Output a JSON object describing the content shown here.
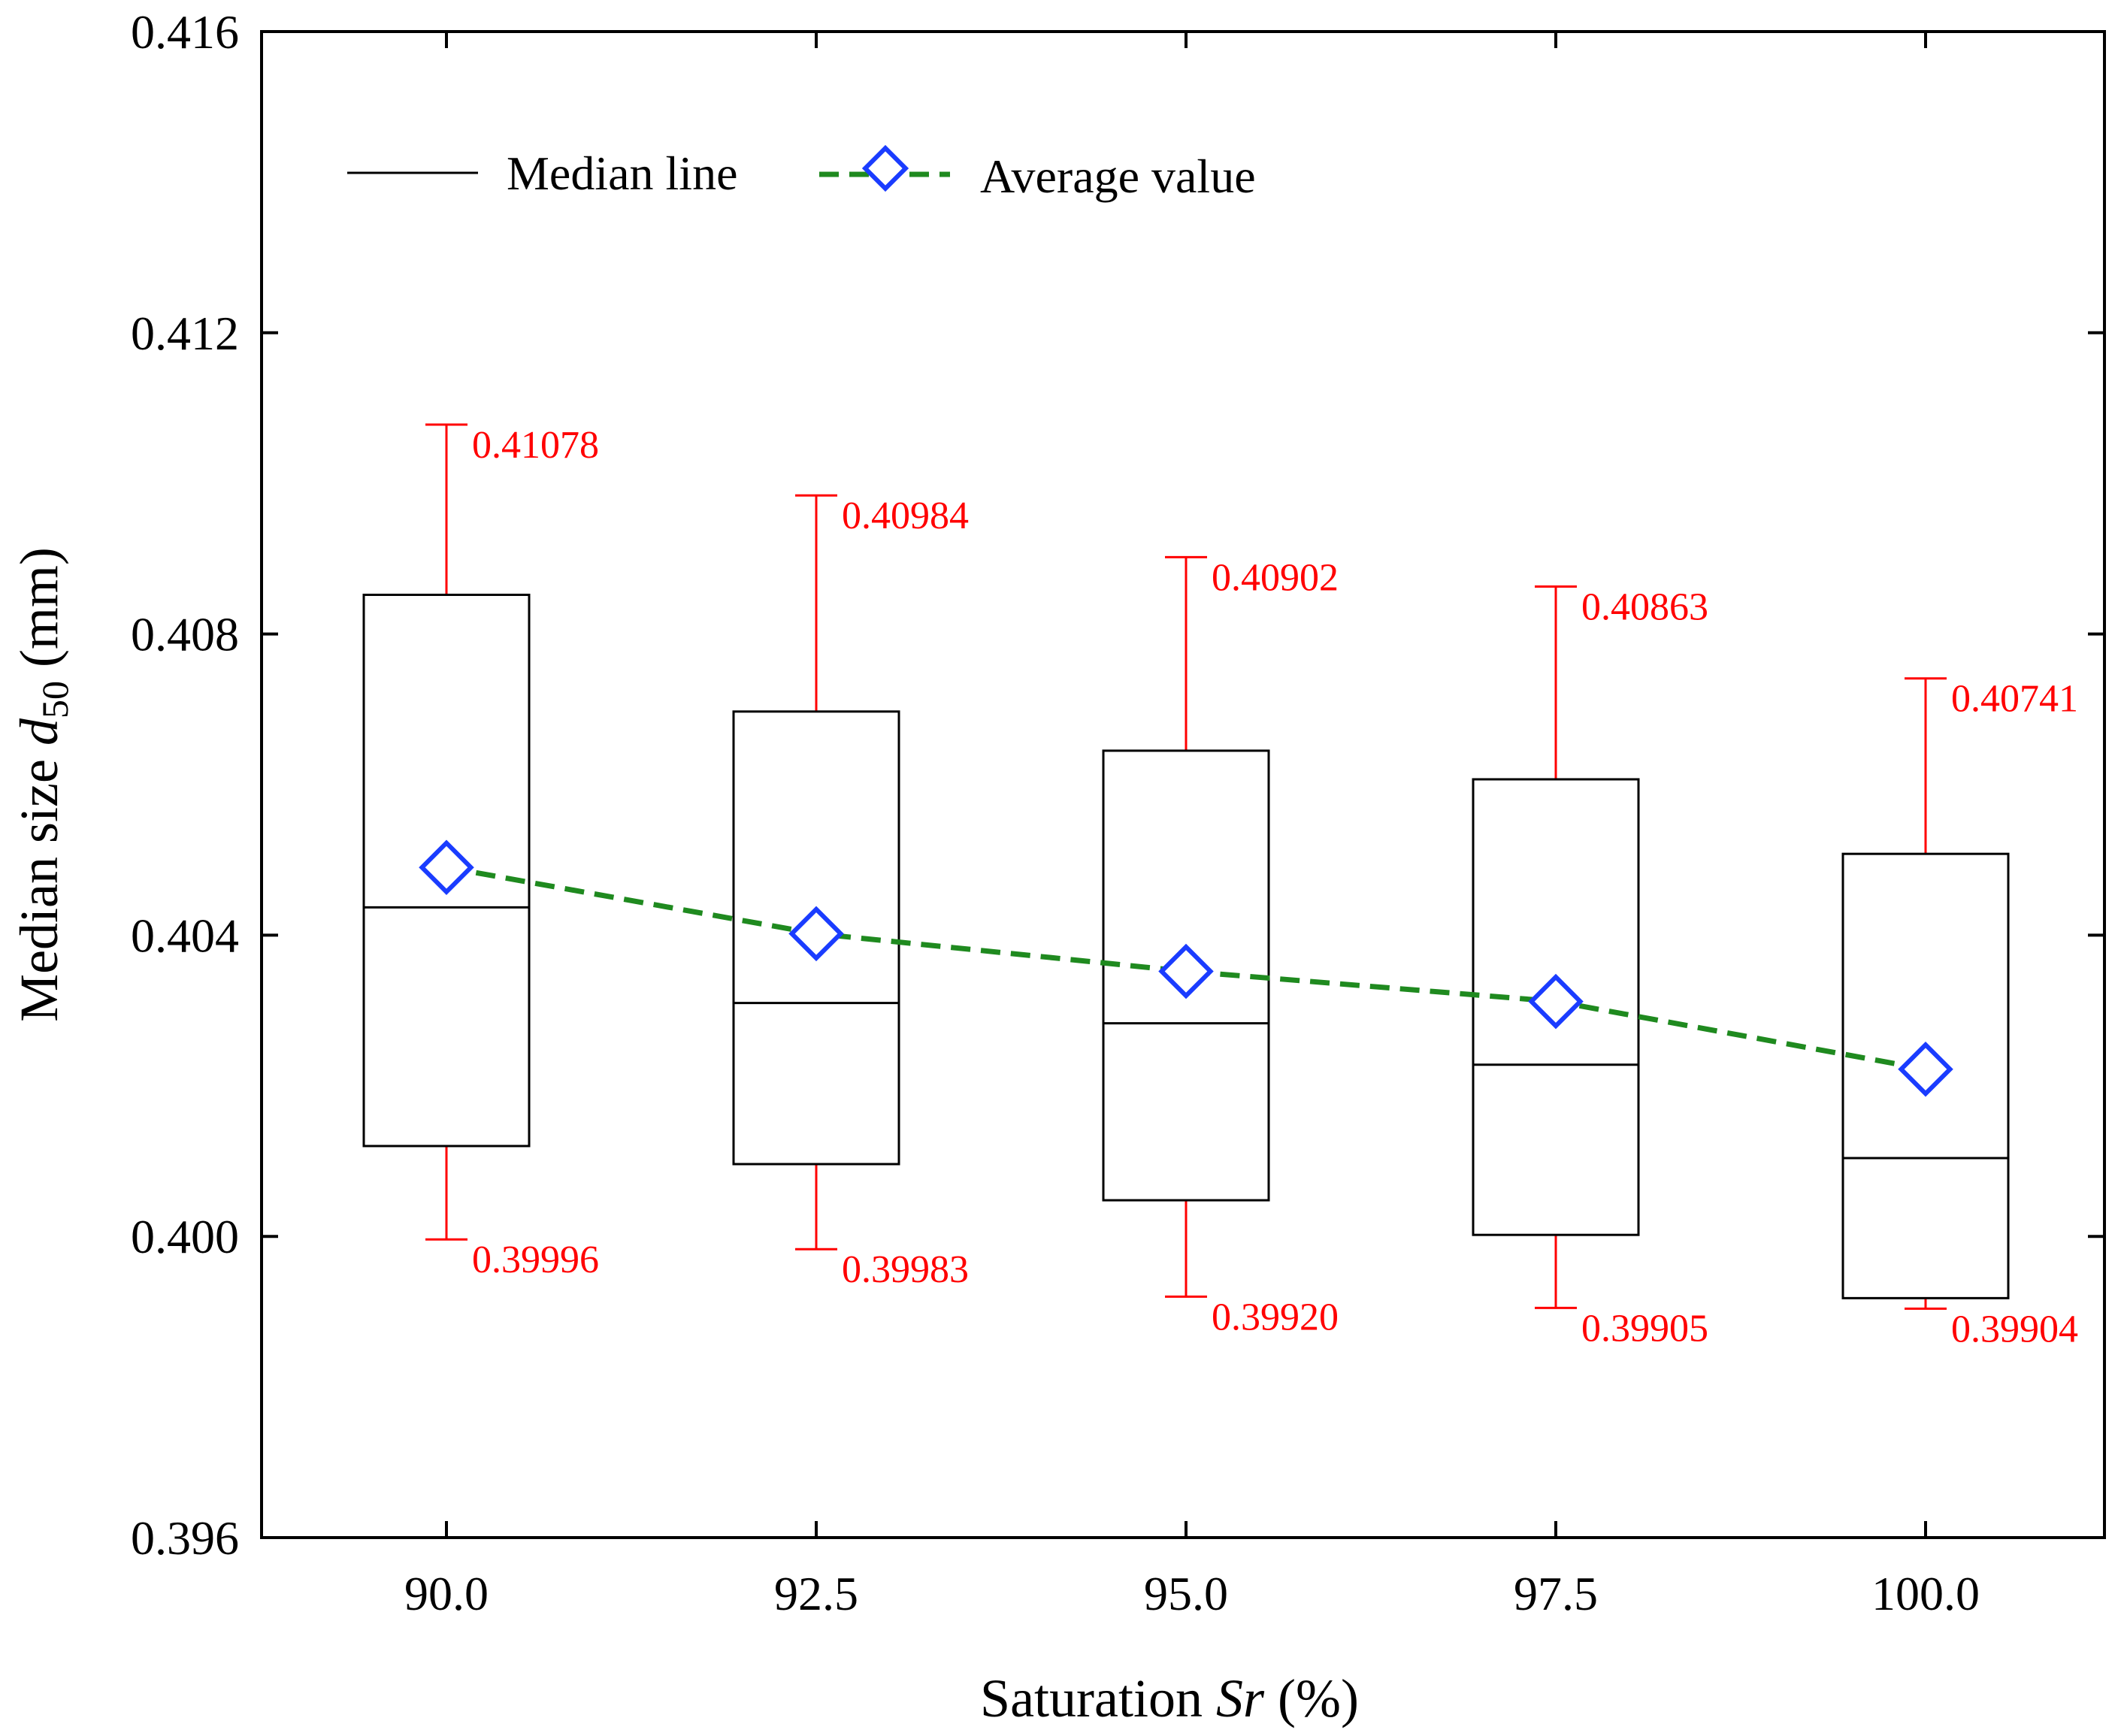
{
  "chart_data": {
    "type": "box",
    "xlabel_parts": [
      "Saturation ",
      "Sr",
      " (%)"
    ],
    "ylabel_parts": [
      "Median size ",
      "d",
      "50",
      "  (mm)"
    ],
    "categories": [
      "90.0",
      "92.5",
      "95.0",
      "97.5",
      "100.0"
    ],
    "ylim": [
      0.396,
      0.416
    ],
    "yticks": [
      "0.396",
      "0.400",
      "0.404",
      "0.408",
      "0.412",
      "0.416"
    ],
    "boxes": [
      {
        "category": "90.0",
        "whisker_high": 0.41078,
        "q3": 0.40852,
        "median": 0.40437,
        "q1": 0.4012,
        "whisker_low": 0.39996,
        "mean": 0.4049,
        "high_label": "0.41078",
        "low_label": "0.39996"
      },
      {
        "category": "92.5",
        "whisker_high": 0.40984,
        "q3": 0.40697,
        "median": 0.4031,
        "q1": 0.40096,
        "whisker_low": 0.39983,
        "mean": 0.40402,
        "high_label": "0.40984",
        "low_label": "0.39983"
      },
      {
        "category": "95.0",
        "whisker_high": 0.40902,
        "q3": 0.40645,
        "median": 0.40283,
        "q1": 0.40048,
        "whisker_low": 0.3992,
        "mean": 0.40352,
        "high_label": "0.40902",
        "low_label": "0.39920"
      },
      {
        "category": "97.5",
        "whisker_high": 0.40863,
        "q3": 0.40607,
        "median": 0.40228,
        "q1": 0.40002,
        "whisker_low": 0.39905,
        "mean": 0.40312,
        "high_label": "0.40863",
        "low_label": "0.39905"
      },
      {
        "category": "100.0",
        "whisker_high": 0.40741,
        "q3": 0.40508,
        "median": 0.40104,
        "q1": 0.39918,
        "whisker_low": 0.39904,
        "mean": 0.40222,
        "high_label": "0.40741",
        "low_label": "0.39904"
      }
    ],
    "legend": {
      "placement": "top-left",
      "median_label": "Median line",
      "average_label": "Average value"
    },
    "colors": {
      "box": "#000000",
      "whisker": "#ff0000",
      "whisker_label": "#ff0000",
      "mean_marker": "#1a3cff",
      "mean_line": "#1f8a1f"
    },
    "grid": false
  }
}
